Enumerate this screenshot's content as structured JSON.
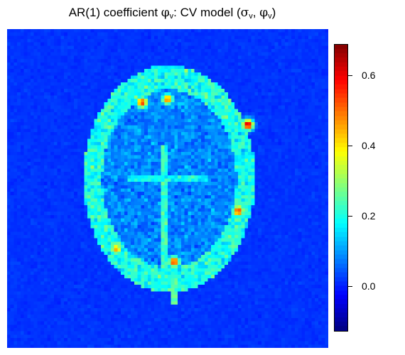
{
  "title": {
    "prefix": "AR(1) coefficient ",
    "phi": "φ",
    "sub_v": "v",
    "middle": ": CV model (",
    "sigma": "σ",
    "comma": ", ",
    "close": ")"
  },
  "chart_data": {
    "type": "heatmap",
    "title": "AR(1) coefficient φv: CV model (σv, φv)",
    "grid_cells": [
      96,
      96
    ],
    "colormap": "jet",
    "colorbar": {
      "placement": "right",
      "range": [
        -0.13,
        0.69
      ],
      "ticks": [
        0.6,
        0.4,
        0.2,
        0.0
      ],
      "tick_labels": [
        "0.6",
        "0.4",
        "0.2",
        "0.0"
      ]
    },
    "background_level": -0.02,
    "features": {
      "brain_outline_level": 0.2,
      "interior_level": 0.08,
      "hotspots": [
        {
          "x": 0.42,
          "y": 0.23,
          "value": 0.55
        },
        {
          "x": 0.5,
          "y": 0.22,
          "value": 0.5
        },
        {
          "x": 0.75,
          "y": 0.3,
          "value": 0.65
        },
        {
          "x": 0.72,
          "y": 0.57,
          "value": 0.55
        },
        {
          "x": 0.34,
          "y": 0.69,
          "value": 0.45
        },
        {
          "x": 0.52,
          "y": 0.73,
          "value": 0.55
        }
      ]
    },
    "grid": false
  }
}
